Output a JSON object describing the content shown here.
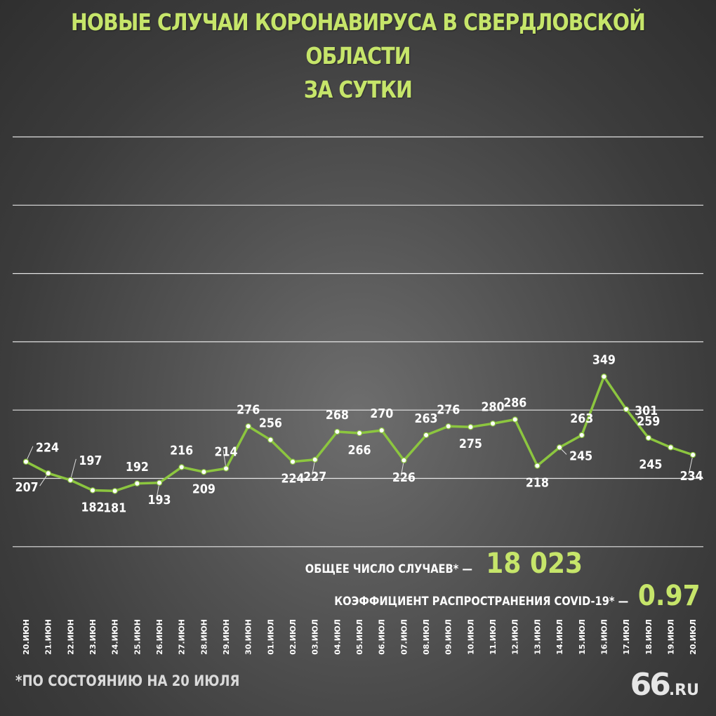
{
  "title_line1": "НОВЫЕ СЛУЧАИ КОРОНАВИРУСА В СВЕРДЛОВСКОЙ ОБЛАСТИ",
  "title_line2": "ЗА СУТКИ",
  "colors": {
    "accent": "#c6e56a",
    "line": "#8cc63f",
    "text": "#ffffff",
    "grid": "#ffffff"
  },
  "chart_data": {
    "type": "line",
    "title": "НОВЫЕ СЛУЧАИ КОРОНАВИРУСА В СВЕРДЛОВСКОЙ ОБЛАСТИ ЗА СУТКИ",
    "xlabel": "",
    "ylabel": "",
    "grid": true,
    "ylim": [
      0,
      350
    ],
    "categories": [
      "20.ИЮН",
      "21.ИЮН",
      "22.ИЮН",
      "23.ИЮН",
      "24.ИЮН",
      "25.ИЮН",
      "26.ИЮН",
      "27.ИЮН",
      "28.ИЮН",
      "29.ИЮН",
      "30.ИЮН",
      "01.ИЮЛ",
      "02.ИЮЛ",
      "03.ИЮЛ",
      "04.ИЮЛ",
      "05.ИЮЛ",
      "06.ИЮЛ",
      "07.ИЮЛ",
      "08.ИЮЛ",
      "09.ИЮЛ",
      "10.ИЮЛ",
      "11.ИЮЛ",
      "12.ИЮЛ",
      "13.ИЮЛ",
      "14.ИЮЛ",
      "15.ИЮЛ",
      "16.ИЮЛ",
      "17.ИЮЛ",
      "18.ИЮЛ",
      "19.ИЮЛ",
      "20.ИЮЛ"
    ],
    "values": [
      224,
      207,
      197,
      182,
      181,
      192,
      193,
      216,
      209,
      214,
      276,
      256,
      224,
      227,
      268,
      266,
      270,
      226,
      263,
      276,
      275,
      280,
      286,
      218,
      245,
      263,
      349,
      301,
      259,
      245,
      234
    ]
  },
  "total_label": "ОБЩЕЕ ЧИСЛО СЛУЧАЕВ* —",
  "total_value": "18 023",
  "coef_label": "КОЭФФИЦИЕНТ РАСПРОСТРАНЕНИЯ COVID-19* —",
  "coef_value": "0.97",
  "footnote": "*ПО СОСТОЯНИЮ НА 20 ИЮЛЯ",
  "logo_number": "66",
  "logo_domain": ".RU"
}
